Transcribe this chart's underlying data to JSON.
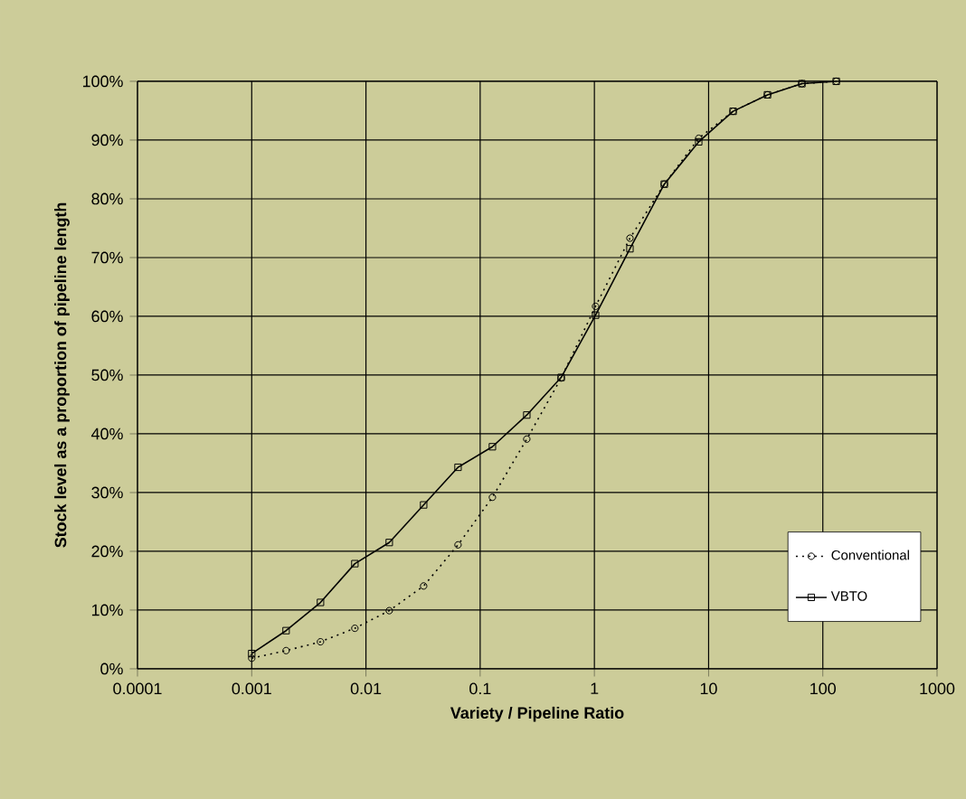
{
  "chart_data": {
    "type": "line",
    "xlabel": "Variety / Pipeline Ratio",
    "ylabel": "Stock level as a proportion of pipeline length",
    "log": "x",
    "grid": true,
    "legend": "bottom right",
    "x": [
      0.001,
      0.002,
      0.004,
      0.008,
      0.016,
      0.032,
      0.064,
      0.128,
      0.256,
      0.512,
      1.024,
      2.048,
      4.096,
      8.192,
      16.384,
      32.768,
      65.536,
      131.072
    ],
    "xlim": [
      0.0001,
      1000
    ],
    "xticks": [
      0.0001,
      0.001,
      0.01,
      0.1,
      1,
      10,
      100,
      1000
    ],
    "ylim": [
      0,
      1
    ],
    "yticks": [
      {
        "value": 0,
        "label": "0%"
      },
      {
        "value": 0.1,
        "label": "10%"
      },
      {
        "value": 0.2,
        "label": "20%"
      },
      {
        "value": 0.3,
        "label": "30%"
      },
      {
        "value": 0.4,
        "label": "40%"
      },
      {
        "value": 0.5,
        "label": "50%"
      },
      {
        "value": 0.6,
        "label": "60%"
      },
      {
        "value": 0.7,
        "label": "70%"
      },
      {
        "value": 0.8,
        "label": "80%"
      },
      {
        "value": 0.9,
        "label": "90%"
      },
      {
        "value": 1,
        "label": "100%"
      }
    ],
    "series": [
      {
        "name": "Conventional",
        "color": "#000000",
        "marker": "circle",
        "line_style": "dotted",
        "values": [
          0.018,
          0.031,
          0.046,
          0.069,
          0.099,
          0.141,
          0.211,
          0.292,
          0.391,
          0.495,
          0.617,
          0.733,
          0.825,
          0.903,
          0.949,
          0.977,
          0.996,
          1.0
        ]
      },
      {
        "name": "VBTO",
        "color": "#000000",
        "marker": "square",
        "line_style": "solid",
        "values": [
          0.026,
          0.065,
          0.113,
          0.179,
          0.215,
          0.279,
          0.343,
          0.378,
          0.432,
          0.496,
          0.602,
          0.715,
          0.825,
          0.897,
          0.949,
          0.977,
          0.996,
          1.0
        ]
      }
    ]
  }
}
